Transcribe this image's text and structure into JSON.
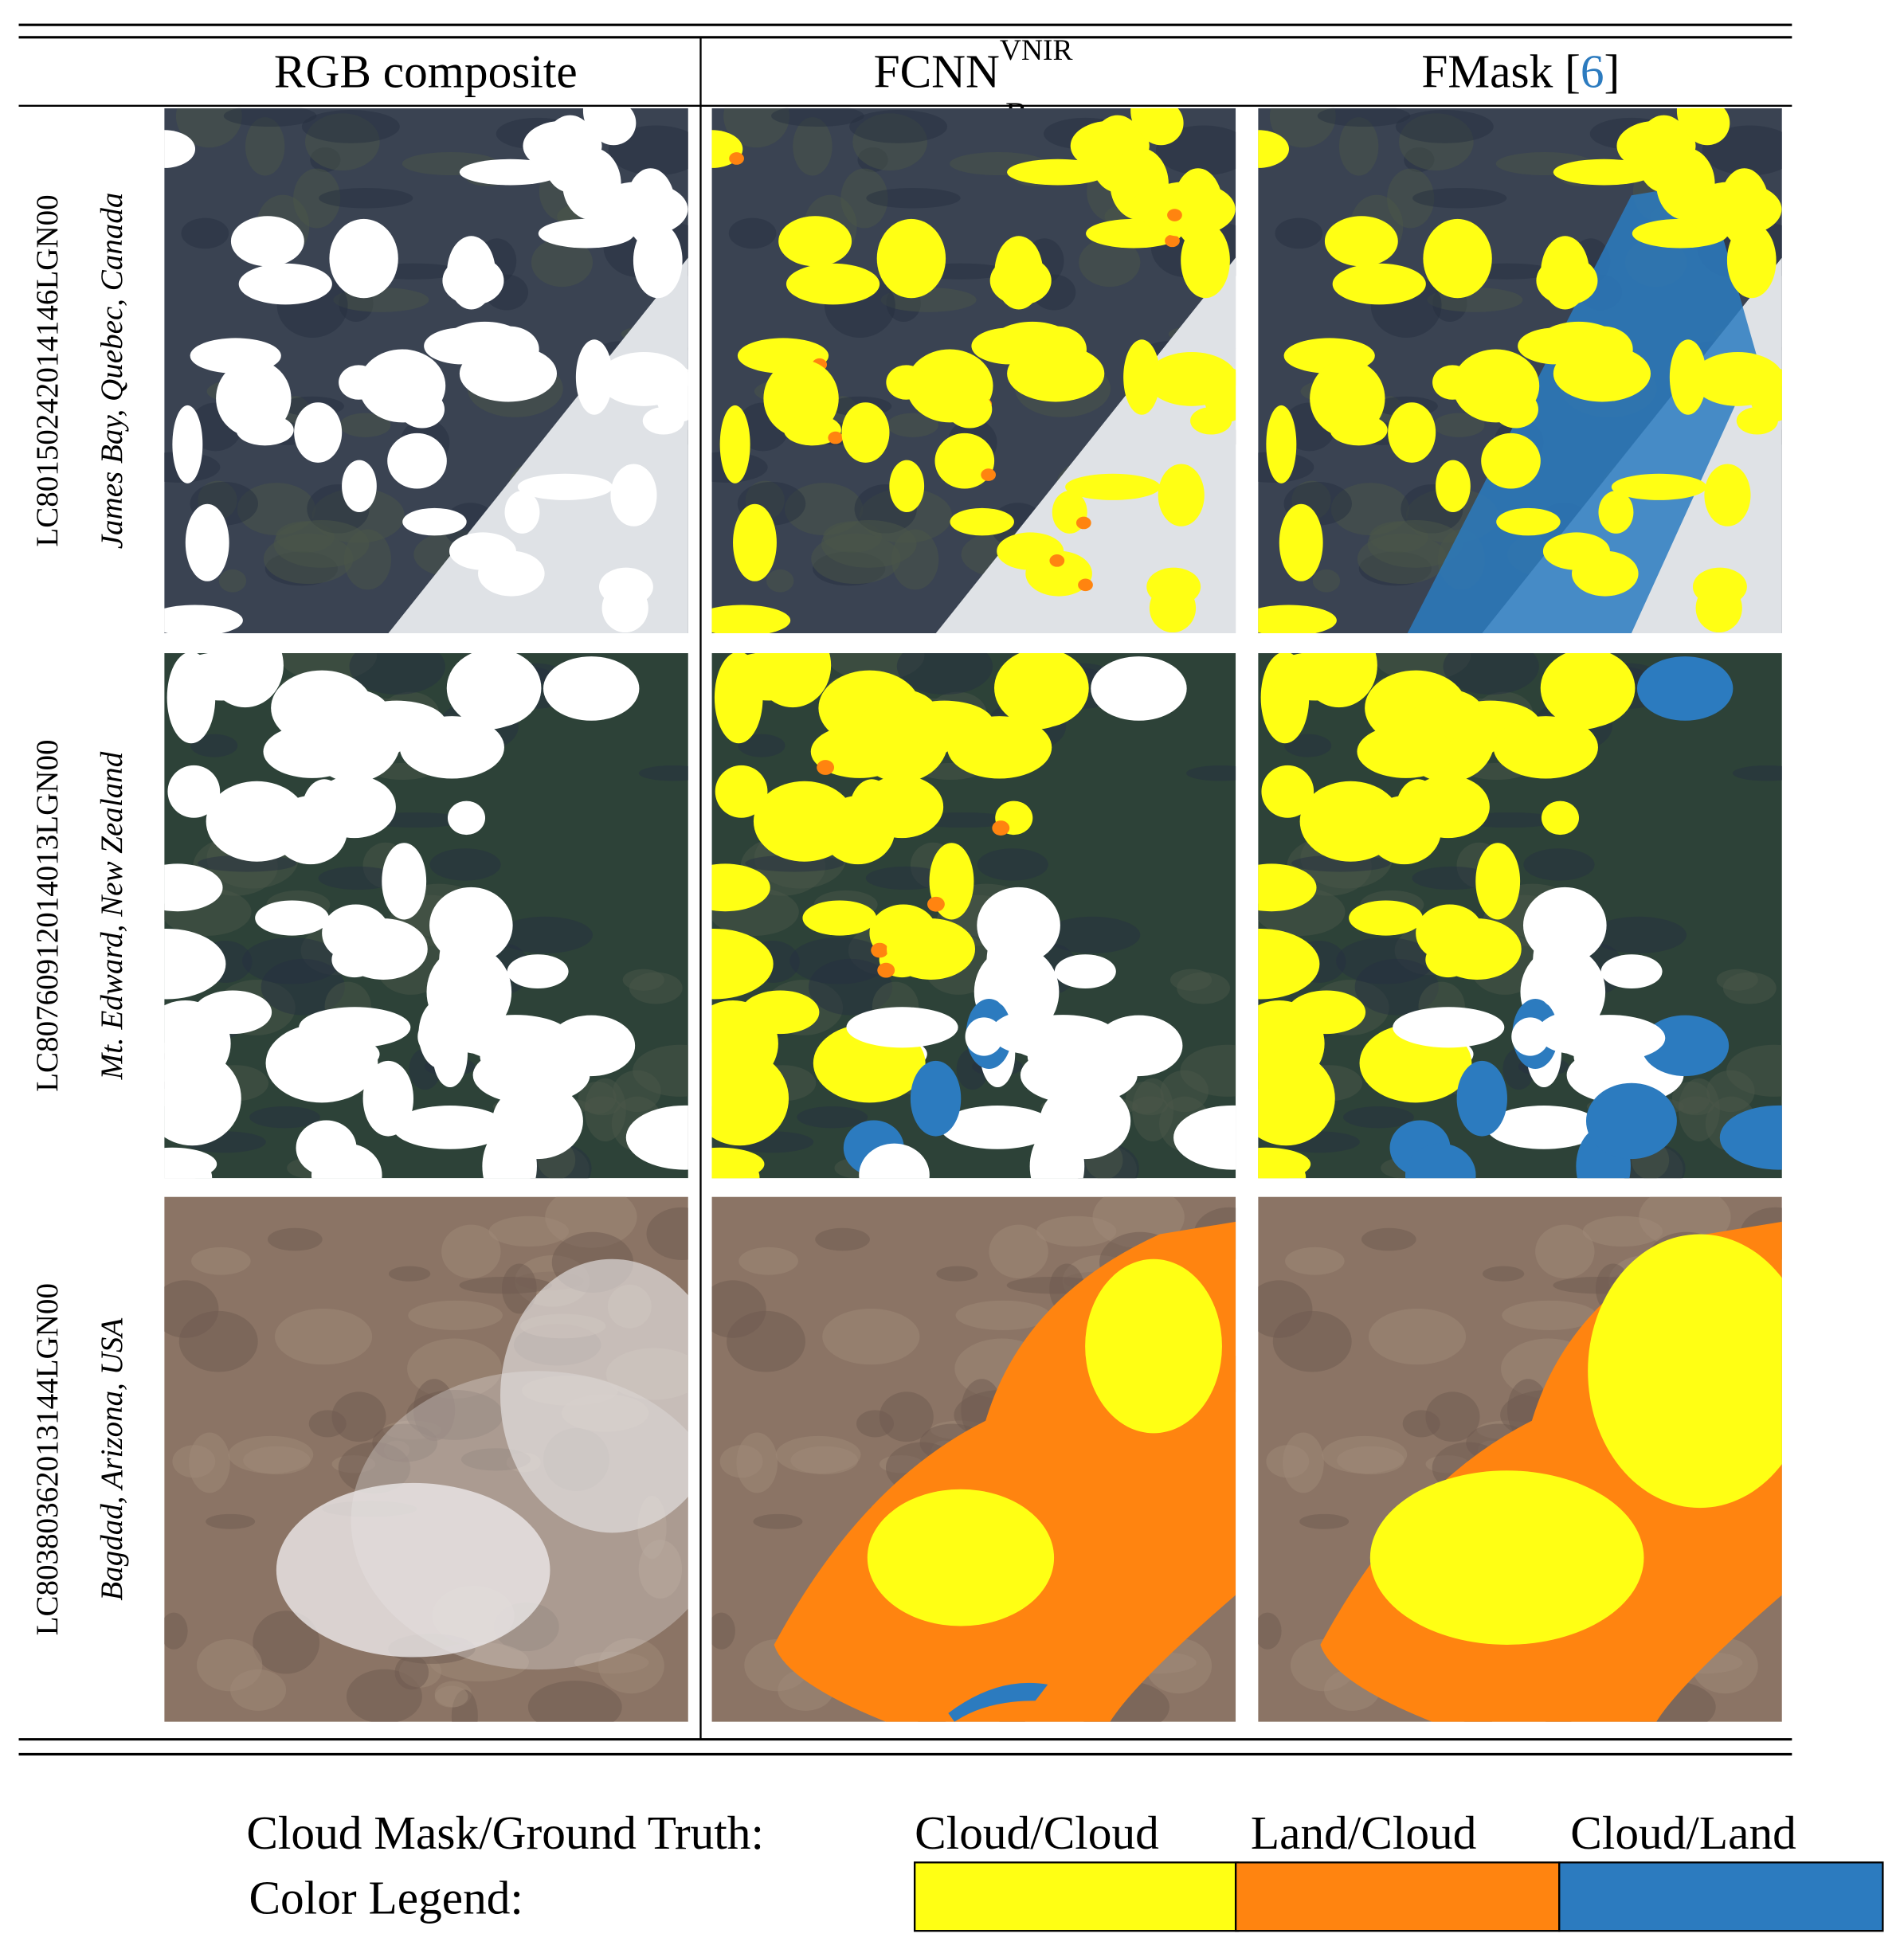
{
  "figure": {
    "columns": [
      {
        "text": "RGB composite"
      },
      {
        "base": "FCNN",
        "sub": "B",
        "sup": "VNIR"
      },
      {
        "text": "FMask [",
        "ref": "6",
        "close": "]"
      }
    ],
    "rows": [
      {
        "id": "LC80150242014146LGN00",
        "location": "James Bay, Quebec, Canada"
      },
      {
        "id": "LC80760912014013LGN00",
        "location": "Mt. Edward, New Zealand"
      },
      {
        "id": "LC80380362013144LGN00",
        "location": "Bagdad, Arizona, USA"
      }
    ],
    "legend": {
      "caption": "Cloud Mask/Ground Truth:",
      "label": "Color Legend:",
      "entries": [
        {
          "name": "Cloud/Cloud",
          "color": "#ffff14"
        },
        {
          "name": "Land/Cloud",
          "color": "#ff8410"
        },
        {
          "name": "Cloud/Land",
          "color": "#2c7bbf"
        }
      ]
    }
  }
}
